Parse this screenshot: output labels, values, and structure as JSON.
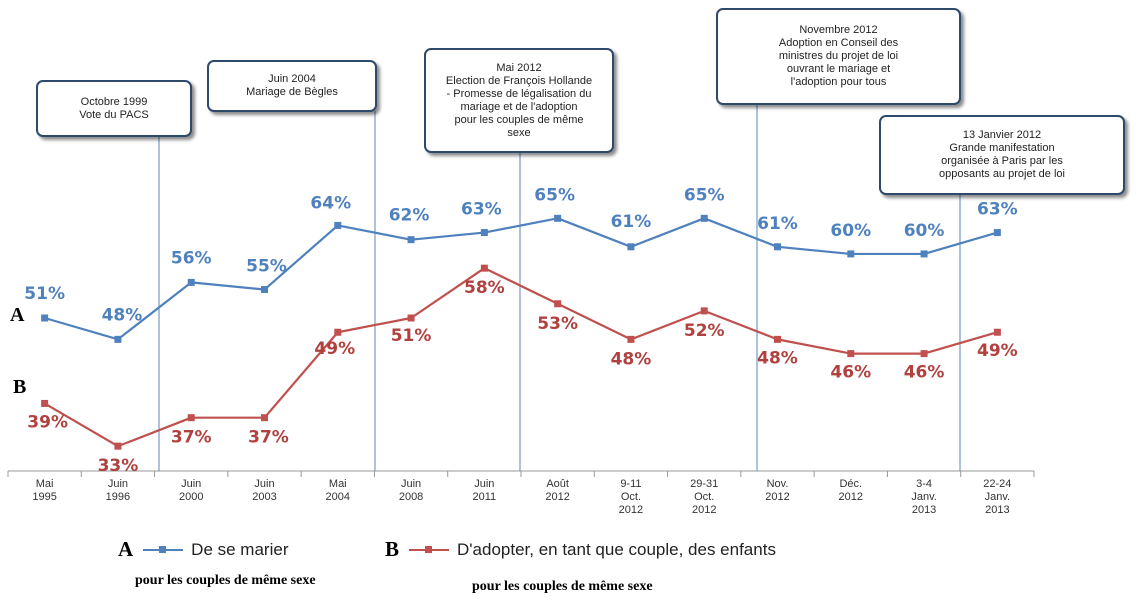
{
  "chart_data": {
    "type": "line",
    "categories": [
      "Mai\n1995",
      "Juin\n1996",
      "Juin\n2000",
      "Juin\n2003",
      "Mai\n2004",
      "Juin\n2008",
      "Juin\n2011",
      "Août\n2012",
      "9-11\nOct.\n2012",
      "29-31\nOct.\n2012",
      "Nov.\n2012",
      "Déc.\n2012",
      "3-4\nJanv.\n2013",
      "22-24\nJanv.\n2013"
    ],
    "series": [
      {
        "name": "De se marier",
        "letter": "A",
        "color": "#4f81bd",
        "values": [
          51,
          48,
          56,
          55,
          64,
          62,
          63,
          65,
          61,
          65,
          61,
          60,
          60,
          63
        ],
        "labels": [
          "51%",
          "48%",
          "56%",
          "55%",
          "64%",
          "62%",
          "63%",
          "65%",
          "61%",
          "65%",
          "61%",
          "60%",
          "60%",
          "63%"
        ]
      },
      {
        "name": "D'adopter, en tant que couple, des enfants",
        "letter": "B",
        "color": "#c0504d",
        "values": [
          39,
          33,
          37,
          37,
          49,
          51,
          58,
          53,
          48,
          52,
          48,
          46,
          46,
          49
        ],
        "labels": [
          "39%",
          "33%",
          "37%",
          "37%",
          "49%",
          "51%",
          "58%",
          "53%",
          "48%",
          "52%",
          "48%",
          "46%",
          "46%",
          "49%"
        ]
      }
    ],
    "annotations": [
      {
        "text": "Octobre 1999\nVote du PACS"
      },
      {
        "text": "Juin 2004\nMariage de Bègles"
      },
      {
        "text": "Mai 2012\nElection de François Hollande\n- Promesse de légalisation du\nmariage et de l'adoption\npour les couples de même\nsexe"
      },
      {
        "text": "Novembre 2012\nAdoption en Conseil des\nministres du projet de loi\nouvrant le mariage et\nl'adoption pour tous"
      },
      {
        "text": "13 Janvier 2012\nGrande manifestation\norganisée à Paris par les\nopposants au projet de loi"
      }
    ],
    "legend": {
      "A": {
        "letter": "A",
        "label": "De se marier",
        "caption": "pour les couples de même sexe"
      },
      "B": {
        "letter": "B",
        "label": "D'adopter, en tant que couple, des enfants",
        "caption": "pour les couples de même sexe"
      }
    },
    "grid": false,
    "legend_position": "bottom"
  }
}
